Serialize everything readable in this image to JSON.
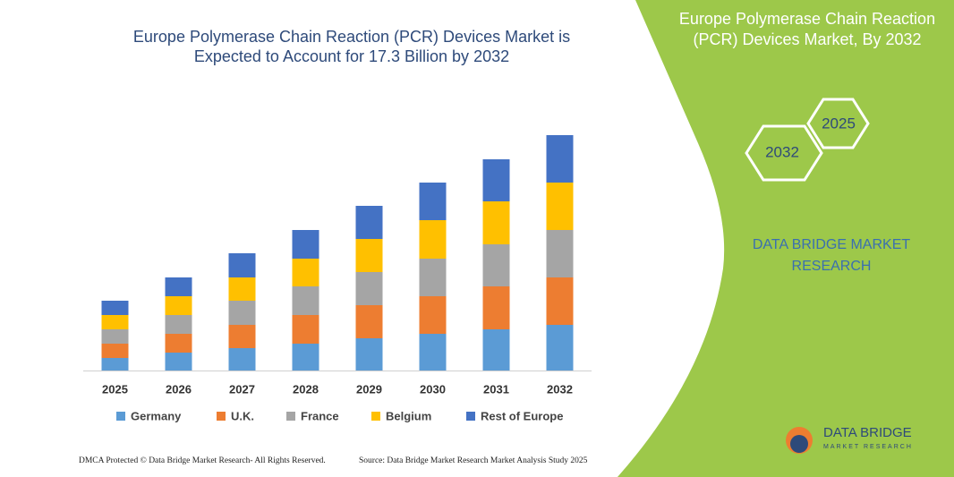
{
  "chart_data": {
    "type": "stacked-bar",
    "title": [
      "Europe Polymerase Chain Reaction (PCR) Devices Market is",
      "Expected to Account for 17.3 Billion by 2032"
    ],
    "categories": [
      "2025",
      "2026",
      "2027",
      "2028",
      "2029",
      "2030",
      "2031",
      "2032"
    ],
    "series": [
      {
        "name": "Germany",
        "color": "#5b9bd5",
        "values": [
          14,
          20,
          25,
          30,
          36,
          41,
          46,
          51
        ]
      },
      {
        "name": "U.K.",
        "color": "#ed7d31",
        "values": [
          16,
          21,
          26,
          32,
          37,
          42,
          48,
          53
        ]
      },
      {
        "name": "France",
        "color": "#a5a5a5",
        "values": [
          16,
          21,
          27,
          32,
          37,
          42,
          47,
          53
        ]
      },
      {
        "name": "Belgium",
        "color": "#ffc000",
        "values": [
          16,
          21,
          26,
          31,
          37,
          43,
          48,
          53
        ]
      },
      {
        "name": "Rest of Europe",
        "color": "#4472c4",
        "values": [
          16,
          21,
          27,
          32,
          37,
          42,
          47,
          53
        ]
      }
    ]
  },
  "panel": {
    "title": [
      "Europe Polymerase Chain Reaction",
      "(PCR) Devices Market, By 2032"
    ],
    "hex_labels": [
      "2025",
      "2032"
    ],
    "brand": [
      "DATA BRIDGE MARKET",
      "RESEARCH"
    ],
    "logo": [
      "DATA BRIDGE",
      "MARKET RESEARCH"
    ]
  },
  "footer": {
    "dmca": "DMCA Protected © Data Bridge Market Research- All Rights Reserved.",
    "source": "Source: Data Bridge Market Research Market Analysis Study 2025"
  }
}
